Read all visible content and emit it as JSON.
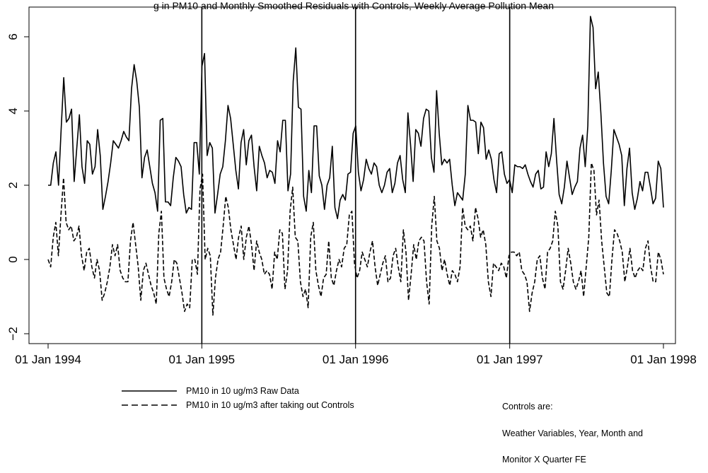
{
  "chart_data": {
    "type": "line",
    "title": "g in PM10 and Monthly Smoothed Residuals with Controls, Weekly Average Pollution Mean",
    "xlabel": "",
    "ylabel": "",
    "x_tick_labels": [
      "01 Jan 1994",
      "01 Jan 1995",
      "01 Jan 1996",
      "01 Jan 1997",
      "01 Jan 1998"
    ],
    "y_ticks": [
      -2,
      0,
      2,
      4,
      6
    ],
    "y_tick_labels": [
      "−2",
      "0",
      "2",
      "4",
      "6"
    ],
    "xlim": [
      "1994-01-01",
      "1998-01-01"
    ],
    "ylim": [
      -2.3,
      6.8
    ],
    "grid": false,
    "vertical_lines": [
      "1995-01-01",
      "1996-01-01",
      "1997-01-01"
    ],
    "legend_position": "bottom-left",
    "series": [
      {
        "name": "PM10 in 10 ug/m3 Raw Data",
        "style": "solid",
        "x_start": "1994-01-01",
        "x_end": "1998-01-01",
        "values": [
          2.0,
          2.0,
          2.6,
          2.9,
          2.0,
          3.5,
          4.9,
          3.7,
          3.8,
          4.05,
          2.1,
          3.0,
          3.9,
          2.5,
          2.05,
          3.2,
          3.1,
          2.3,
          2.5,
          3.5,
          2.8,
          1.35,
          1.7,
          2.1,
          2.6,
          3.2,
          3.1,
          3.0,
          3.2,
          3.45,
          3.3,
          3.2,
          4.6,
          5.25,
          4.8,
          4.1,
          2.2,
          2.75,
          2.95,
          2.5,
          2.05,
          1.8,
          1.3,
          3.75,
          3.8,
          1.55,
          1.55,
          1.45,
          2.2,
          2.75,
          2.65,
          2.5,
          1.75,
          1.25,
          1.4,
          1.35,
          3.15,
          3.15,
          2.3,
          5.2,
          5.55,
          2.8,
          3.15,
          3.0,
          1.25,
          1.75,
          2.3,
          2.5,
          3.2,
          4.15,
          3.8,
          3.1,
          2.4,
          1.9,
          3.15,
          3.5,
          2.55,
          3.2,
          3.35,
          2.5,
          1.85,
          3.05,
          2.8,
          2.6,
          2.2,
          2.4,
          2.35,
          2.05,
          3.2,
          2.9,
          3.75,
          3.75,
          1.85,
          2.3,
          4.8,
          5.7,
          4.1,
          4.05,
          1.7,
          1.3,
          2.4,
          1.8,
          3.6,
          3.6,
          2.25,
          2.0,
          1.35,
          2.0,
          2.2,
          3.05,
          1.4,
          1.1,
          1.6,
          1.75,
          1.6,
          2.3,
          2.35,
          3.4,
          3.6,
          2.35,
          1.85,
          2.15,
          2.7,
          2.45,
          2.3,
          2.6,
          2.5,
          2.0,
          1.8,
          2.0,
          2.35,
          2.45,
          1.8,
          2.05,
          2.6,
          2.8,
          2.15,
          1.8,
          3.95,
          3.1,
          2.1,
          3.5,
          3.4,
          3.05,
          3.8,
          4.05,
          4.0,
          2.75,
          2.35,
          4.55,
          3.4,
          2.55,
          2.7,
          2.6,
          2.7,
          2.0,
          1.45,
          1.8,
          1.7,
          1.6,
          2.3,
          4.15,
          3.75,
          3.75,
          3.7,
          2.85,
          3.7,
          3.55,
          2.7,
          2.95,
          2.7,
          2.15,
          1.8,
          2.85,
          2.9,
          2.3,
          2.05,
          2.15,
          1.8,
          2.55,
          2.5,
          2.5,
          2.45,
          2.55,
          2.3,
          2.1,
          1.95,
          2.3,
          2.4,
          1.9,
          1.95,
          2.9,
          2.5,
          2.85,
          3.8,
          2.7,
          1.75,
          1.5,
          1.95,
          2.65,
          2.2,
          1.75,
          1.95,
          2.1,
          3.0,
          3.35,
          2.5,
          3.6,
          6.55,
          6.25,
          4.6,
          5.05,
          3.95,
          2.6,
          1.7,
          1.5,
          2.4,
          3.5,
          3.3,
          3.1,
          2.8,
          1.45,
          2.45,
          3.0,
          1.8,
          1.35,
          1.65,
          2.1,
          1.85,
          2.35,
          2.35,
          1.95,
          1.5,
          1.65,
          2.65,
          2.45,
          1.4
        ]
      },
      {
        "name": "PM10 in 10 ug/m3 after taking out Controls",
        "style": "dashed",
        "x_start": "1994-01-01",
        "x_end": "1998-01-01",
        "values": [
          0.0,
          -0.2,
          0.6,
          1.0,
          0.1,
          1.2,
          2.2,
          1.0,
          0.8,
          0.9,
          0.5,
          0.6,
          0.9,
          0.1,
          -0.3,
          0.2,
          0.3,
          -0.2,
          -0.5,
          0.0,
          -0.3,
          -1.1,
          -0.9,
          -0.6,
          -0.2,
          0.4,
          0.1,
          0.4,
          -0.3,
          -0.5,
          -0.6,
          -0.6,
          0.5,
          1.0,
          0.4,
          -0.2,
          -1.1,
          -0.3,
          -0.1,
          -0.4,
          -0.7,
          -0.9,
          -1.2,
          0.7,
          1.3,
          -0.5,
          -0.8,
          -1.0,
          -0.6,
          0.0,
          -0.1,
          -0.5,
          -0.9,
          -1.4,
          -1.2,
          -1.3,
          0.0,
          0.0,
          -0.4,
          1.9,
          2.3,
          0.0,
          0.3,
          0.1,
          -1.5,
          -0.5,
          0.0,
          0.2,
          0.9,
          1.7,
          1.4,
          0.8,
          0.4,
          0.0,
          0.6,
          0.9,
          0.0,
          0.6,
          0.9,
          0.4,
          -0.3,
          0.5,
          0.2,
          0.0,
          -0.4,
          -0.3,
          -0.4,
          -0.8,
          0.2,
          0.0,
          0.8,
          0.7,
          -0.8,
          -0.3,
          1.3,
          1.95,
          0.6,
          0.5,
          -0.6,
          -1.0,
          -0.8,
          -1.3,
          0.6,
          1.0,
          -0.3,
          -0.7,
          -1.0,
          -0.5,
          -0.4,
          0.5,
          -0.5,
          -0.7,
          -0.3,
          0.0,
          -0.2,
          0.3,
          0.4,
          1.2,
          1.3,
          -0.1,
          -0.5,
          -0.3,
          0.2,
          0.0,
          -0.2,
          0.2,
          0.5,
          -0.2,
          -0.7,
          -0.4,
          -0.1,
          0.1,
          -0.6,
          -0.5,
          0.1,
          0.3,
          -0.2,
          -0.6,
          0.8,
          0.2,
          -1.1,
          -0.4,
          0.4,
          0.0,
          0.5,
          0.6,
          0.5,
          -0.6,
          -1.2,
          0.9,
          1.7,
          0.5,
          0.3,
          -0.3,
          0.0,
          -0.4,
          -0.7,
          -0.3,
          -0.4,
          -0.6,
          -0.2,
          1.4,
          0.9,
          0.8,
          0.9,
          0.5,
          1.4,
          1.1,
          0.6,
          0.8,
          0.4,
          -0.6,
          -1.0,
          -0.1,
          -0.2,
          -0.3,
          -0.1,
          -0.2,
          -0.5,
          0.1,
          0.2,
          0.2,
          0.1,
          0.2,
          -0.3,
          -0.4,
          -0.6,
          -1.4,
          -0.9,
          -0.6,
          0.0,
          0.1,
          -0.5,
          -0.8,
          0.2,
          0.3,
          0.5,
          1.3,
          0.9,
          -0.6,
          -0.8,
          -0.3,
          0.3,
          -0.1,
          -0.6,
          -0.8,
          -0.6,
          -0.3,
          -1.0,
          -0.2,
          0.6,
          2.6,
          2.4,
          1.2,
          1.6,
          0.5,
          -0.2,
          -0.9,
          -1.0,
          0.0,
          0.8,
          0.7,
          0.5,
          0.2,
          -0.6,
          -0.2,
          0.3,
          -0.3,
          -0.5,
          -0.3,
          -0.2,
          -0.3,
          0.3,
          0.5,
          -0.2,
          -0.6,
          -0.6,
          0.2,
          0.0,
          -0.4
        ]
      }
    ]
  },
  "note": {
    "lines": [
      "Controls are:",
      "Weather Variables, Year, Month and",
      "Monitor X Quarter FE"
    ]
  }
}
